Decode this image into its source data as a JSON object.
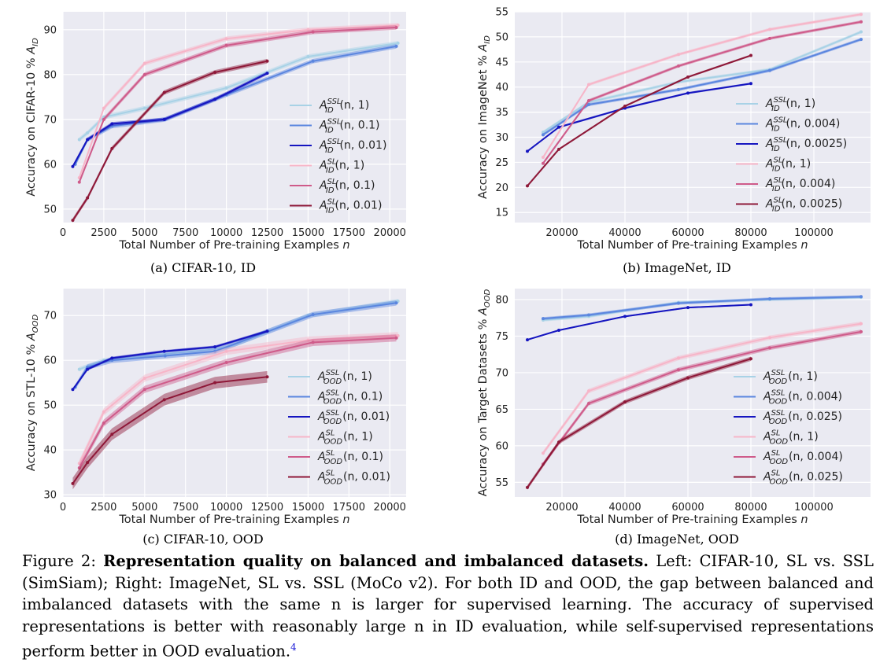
{
  "figure": {
    "caption_label": "Figure 2:",
    "caption_title": "Representation quality on balanced and imbalanced datasets.",
    "caption_text": " Left: CIFAR-10, SL vs. SSL (SimSiam); Right: ImageNet, SL vs. SSL (MoCo v2). For both ID and OOD, the gap between balanced and imbalanced datasets with the same n is larger for supervised learning. The accuracy of supervised representations is better with reasonably large n in ID evaluation, while self-supervised representations perform better in OOD evaluation.",
    "footnote": "4"
  },
  "colors": {
    "ssl_light": "#a8d2e6",
    "ssl_mid": "#5b86df",
    "ssl_dark": "#1515c0",
    "sl_light": "#f7b5c8",
    "sl_mid": "#cf5b8a",
    "sl_dark": "#8e1838",
    "panel_bg": "#eaeaf2"
  },
  "chart_data": [
    {
      "type": "line",
      "subcaption": "(a) CIFAR-10, ID",
      "xlabel": "Total Number of Pre-training Examples n",
      "ylabel": "Accuracy on CIFAR-10 % A_ID",
      "xlim": [
        0,
        21000
      ],
      "ylim": [
        47,
        94
      ],
      "xticks": [
        0,
        2500,
        5000,
        7500,
        10000,
        12500,
        15000,
        17500,
        20000
      ],
      "yticks": [
        50,
        60,
        70,
        80,
        90
      ],
      "legend_position": "center-right",
      "series": [
        {
          "name": "A_ID^SSL(n, 1)",
          "color_key": "ssl_light",
          "band": 0.5,
          "x": [
            1000,
            1500,
            2500,
            5000,
            10000,
            15000,
            20500
          ],
          "y": [
            65.5,
            67,
            70.5,
            72.5,
            77,
            84,
            87
          ]
        },
        {
          "name": "A_ID^SSL(n, 0.1)",
          "color_key": "ssl_mid",
          "band": 0.5,
          "x": [
            750,
            1500,
            3000,
            6250,
            10000,
            15300,
            20400
          ],
          "y": [
            60,
            65.5,
            68.5,
            70,
            75.5,
            83,
            86.3
          ]
        },
        {
          "name": "A_ID^SSL(n, 0.01)",
          "color_key": "ssl_dark",
          "band": 0.4,
          "x": [
            600,
            1500,
            3000,
            6200,
            9300,
            12500
          ],
          "y": [
            59.5,
            65.5,
            69,
            70,
            74.5,
            80.3
          ]
        },
        {
          "name": "A_ID^SL(n, 1)",
          "color_key": "sl_light",
          "band": 0.5,
          "x": [
            1000,
            2500,
            5000,
            10000,
            15000,
            20500
          ],
          "y": [
            57,
            72.5,
            82.5,
            88,
            90,
            91
          ]
        },
        {
          "name": "A_ID^SL(n, 0.1)",
          "color_key": "sl_mid",
          "band": 0.5,
          "x": [
            1000,
            2500,
            5000,
            10000,
            15300,
            20400
          ],
          "y": [
            56,
            70,
            80,
            86.5,
            89.5,
            90.5
          ]
        },
        {
          "name": "A_ID^SL(n, 0.01)",
          "color_key": "sl_dark",
          "band": 0.5,
          "x": [
            600,
            1500,
            3000,
            6200,
            9300,
            12500
          ],
          "y": [
            47.5,
            52.5,
            63.5,
            76,
            80.5,
            83
          ]
        }
      ]
    },
    {
      "type": "line",
      "subcaption": "(b) ImageNet, ID",
      "xlabel": "Total Number of Pre-training Examples n",
      "ylabel": "Accuracy on ImageNet % A_ID",
      "xlim": [
        5000,
        118000
      ],
      "ylim": [
        13,
        55
      ],
      "xticks": [
        20000,
        40000,
        60000,
        80000,
        100000
      ],
      "yticks": [
        15,
        20,
        25,
        30,
        35,
        40,
        45,
        50,
        55
      ],
      "legend_position": "center-right",
      "series": [
        {
          "name": "A_ID^SSL(n, 1)",
          "color_key": "ssl_light",
          "band": 0.3,
          "x": [
            14000,
            28500,
            57000,
            86000,
            115000
          ],
          "y": [
            31,
            37,
            41,
            43.5,
            51
          ]
        },
        {
          "name": "A_ID^SSL(n, 0.004)",
          "color_key": "ssl_mid",
          "band": 0.3,
          "x": [
            14000,
            28500,
            57000,
            86000,
            115000
          ],
          "y": [
            30.5,
            36.5,
            39.5,
            43.3,
            49.5
          ]
        },
        {
          "name": "A_ID^SSL(n, 0.0025)",
          "color_key": "ssl_dark",
          "band": 0.2,
          "x": [
            9000,
            19000,
            40000,
            60000,
            80000
          ],
          "y": [
            27.2,
            32,
            35.8,
            38.8,
            40.7
          ]
        },
        {
          "name": "A_ID^SL(n, 1)",
          "color_key": "sl_light",
          "band": 0.3,
          "x": [
            14000,
            28500,
            57000,
            86000,
            115000
          ],
          "y": [
            26,
            40.5,
            46.5,
            51.5,
            54.5
          ]
        },
        {
          "name": "A_ID^SL(n, 0.004)",
          "color_key": "sl_mid",
          "band": 0.3,
          "x": [
            14000,
            28500,
            57000,
            86000,
            115000
          ],
          "y": [
            24.8,
            37.3,
            44.2,
            49.7,
            53
          ]
        },
        {
          "name": "A_ID^SL(n, 0.0025)",
          "color_key": "sl_dark",
          "band": 0.2,
          "x": [
            9000,
            19000,
            40000,
            60000,
            80000
          ],
          "y": [
            20.3,
            27.6,
            36.2,
            42,
            46.3
          ]
        }
      ]
    },
    {
      "type": "line",
      "subcaption": "(c) CIFAR-10, OOD",
      "xlabel": "Total Number of Pre-training Examples n",
      "ylabel": "Accuracy on STL-10 % A_OOD",
      "xlim": [
        0,
        21000
      ],
      "ylim": [
        29.5,
        76
      ],
      "xticks": [
        0,
        2500,
        5000,
        7500,
        10000,
        12500,
        15000,
        17500,
        20000
      ],
      "yticks": [
        30,
        40,
        50,
        60,
        70
      ],
      "legend_position": "center-right",
      "series": [
        {
          "name": "A_OOD^SSL(n, 1)",
          "color_key": "ssl_light",
          "band": 0.5,
          "x": [
            1000,
            2500,
            5000,
            10000,
            15000,
            20500
          ],
          "y": [
            58,
            60,
            61,
            62.8,
            70,
            73.2
          ]
        },
        {
          "name": "A_OOD^SSL(n, 0.1)",
          "color_key": "ssl_mid",
          "band": 0.6,
          "x": [
            750,
            1500,
            3000,
            6250,
            9300,
            15300,
            20400
          ],
          "y": [
            54,
            58.5,
            60,
            61,
            62,
            70.2,
            72.8
          ]
        },
        {
          "name": "A_OOD^SSL(n, 0.01)",
          "color_key": "ssl_dark",
          "band": 0.3,
          "x": [
            600,
            1500,
            3000,
            6200,
            9300,
            12500
          ],
          "y": [
            53.5,
            58,
            60.5,
            62,
            63,
            66.5
          ]
        },
        {
          "name": "A_OOD^SL(n, 1)",
          "color_key": "sl_light",
          "band": 0.8,
          "x": [
            1000,
            2500,
            5000,
            10000,
            15000,
            20500
          ],
          "y": [
            37,
            48.5,
            56,
            62,
            64.5,
            65.5
          ]
        },
        {
          "name": "A_OOD^SL(n, 0.1)",
          "color_key": "sl_mid",
          "band": 0.8,
          "x": [
            1000,
            2500,
            5000,
            10000,
            15300,
            20400
          ],
          "y": [
            36,
            46,
            53.5,
            59.5,
            64,
            65
          ]
        },
        {
          "name": "A_OOD^SL(n, 0.01)",
          "color_key": "sl_dark",
          "band": 1.3,
          "x": [
            600,
            1500,
            3000,
            6200,
            9300,
            12500
          ],
          "y": [
            32.5,
            37.2,
            43.5,
            51.2,
            55,
            56.3
          ]
        }
      ]
    },
    {
      "type": "line",
      "subcaption": "(d) ImageNet, OOD",
      "xlabel": "Total Number of Pre-training Examples n",
      "ylabel": "Accuracy on Target Datasets % A_OOD",
      "xlim": [
        5000,
        118000
      ],
      "ylim": [
        53,
        81.5
      ],
      "xticks": [
        20000,
        40000,
        60000,
        80000,
        100000
      ],
      "yticks": [
        55,
        60,
        65,
        70,
        75,
        80
      ],
      "legend_position": "center-right",
      "series": [
        {
          "name": "A_OOD^SSL(n, 1)",
          "color_key": "ssl_light",
          "band": 0.2,
          "x": [
            14000,
            28500,
            57000,
            86000,
            115000
          ],
          "y": [
            77.2,
            77.7,
            79.6,
            80,
            80.3
          ]
        },
        {
          "name": "A_OOD^SSL(n, 0.004)",
          "color_key": "ssl_mid",
          "band": 0.2,
          "x": [
            14000,
            28500,
            57000,
            86000,
            115000
          ],
          "y": [
            77.4,
            77.9,
            79.5,
            80.1,
            80.4
          ]
        },
        {
          "name": "A_OOD^SSL(n, 0.025)",
          "color_key": "ssl_dark",
          "band": 0.1,
          "x": [
            9000,
            19000,
            40000,
            60000,
            80000
          ],
          "y": [
            74.5,
            75.8,
            77.7,
            78.9,
            79.3
          ]
        },
        {
          "name": "A_OOD^SL(n, 1)",
          "color_key": "sl_light",
          "band": 0.3,
          "x": [
            14000,
            28500,
            57000,
            86000,
            115000
          ],
          "y": [
            59,
            67.5,
            72,
            74.8,
            76.7
          ]
        },
        {
          "name": "A_OOD^SL(n, 0.004)",
          "color_key": "sl_mid",
          "band": 0.3,
          "x": [
            14000,
            28500,
            57000,
            86000,
            115000
          ],
          "y": [
            57.5,
            65.8,
            70.4,
            73.4,
            75.6
          ]
        },
        {
          "name": "A_OOD^SL(n, 0.025)",
          "color_key": "sl_dark",
          "band": 0.3,
          "x": [
            9000,
            19000,
            40000,
            60000,
            80000
          ],
          "y": [
            54.3,
            60.5,
            66,
            69.3,
            71.9
          ]
        }
      ]
    }
  ]
}
